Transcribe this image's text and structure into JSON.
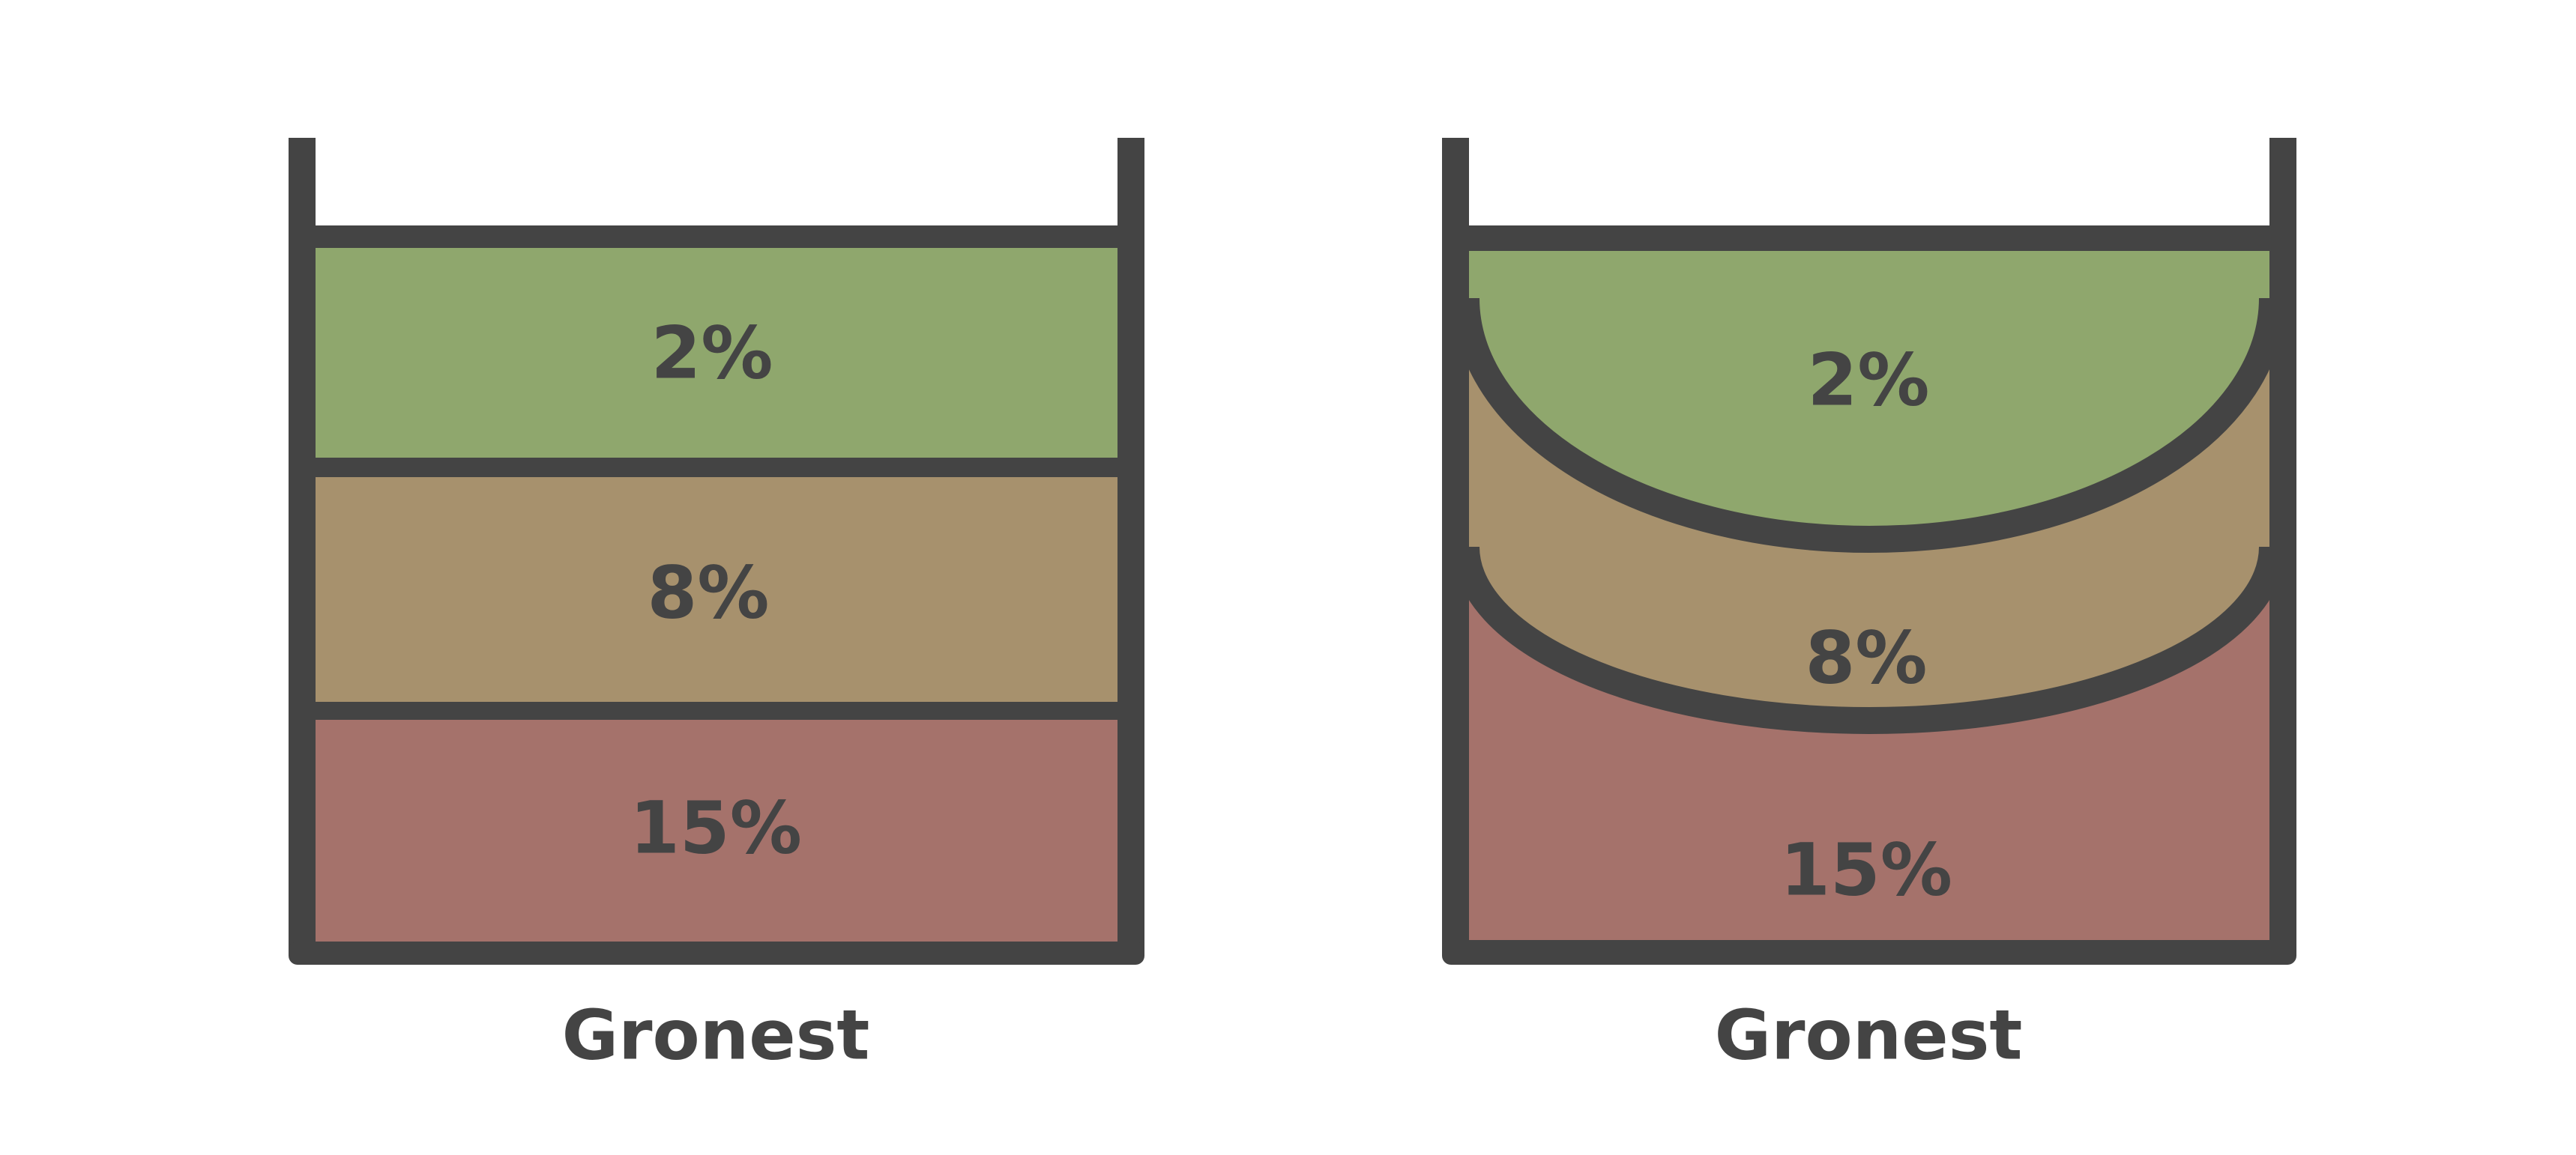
{
  "colors": {
    "outline": "#444444",
    "top_layer": "#8fa76d",
    "middle_layer": "#a7916d",
    "bottom_layer": "#a5726b",
    "background": "#ffffff"
  },
  "containers": [
    {
      "style": "flat-layers",
      "caption": "Gronest",
      "layers": [
        {
          "label": "2%",
          "value": 2
        },
        {
          "label": "8%",
          "value": 8
        },
        {
          "label": "15%",
          "value": 15
        }
      ]
    },
    {
      "style": "curved-layers",
      "caption": "Gronest",
      "layers": [
        {
          "label": "2%",
          "value": 2
        },
        {
          "label": "8%",
          "value": 8
        },
        {
          "label": "15%",
          "value": 15
        }
      ]
    }
  ]
}
